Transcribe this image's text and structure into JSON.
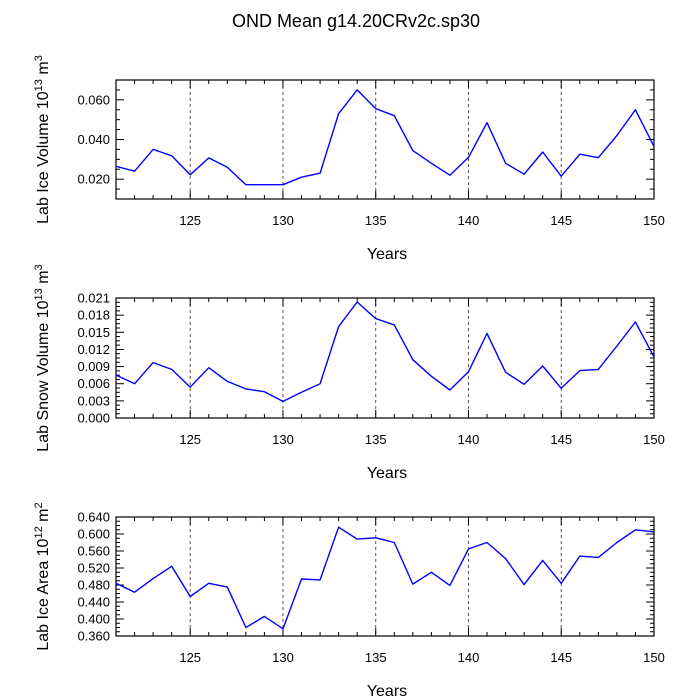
{
  "title": "OND Mean g14.20CRv2c.sp30",
  "colors": {
    "line": "#0000ff",
    "axis": "#000000",
    "grid": "#555555"
  },
  "chart_data": [
    {
      "type": "line",
      "ylabel": "Lab Ice Volume",
      "yunit_base": "10",
      "yunit_exp": "13",
      "yunit_tail": " m",
      "yunit_tail_exp": "3",
      "xlabel": "Years",
      "xlim": [
        121,
        150
      ],
      "ylim": [
        0.01,
        0.07
      ],
      "x_ticks": [
        "125",
        "130",
        "135",
        "140",
        "145",
        "150"
      ],
      "y_ticks": [
        "0.020",
        "0.040",
        "0.060"
      ],
      "grid": "vertical dashed at labeled x ticks",
      "x": [
        121,
        122,
        123,
        124,
        125,
        126,
        127,
        128,
        129,
        130,
        131,
        132,
        133,
        134,
        135,
        136,
        137,
        138,
        139,
        140,
        141,
        142,
        143,
        144,
        145,
        146,
        147,
        148,
        149,
        150
      ],
      "values": [
        0.0265,
        0.024,
        0.035,
        0.0318,
        0.0222,
        0.0307,
        0.026,
        0.0172,
        0.0172,
        0.0172,
        0.021,
        0.023,
        0.053,
        0.065,
        0.0556,
        0.052,
        0.0344,
        0.028,
        0.022,
        0.031,
        0.0485,
        0.028,
        0.0225,
        0.0337,
        0.0215,
        0.0326,
        0.0308,
        0.042,
        0.055,
        0.0365
      ]
    },
    {
      "type": "line",
      "ylabel": "Lab Snow Volume",
      "yunit_base": "10",
      "yunit_exp": "13",
      "yunit_tail": " m",
      "yunit_tail_exp": "3",
      "xlabel": "Years",
      "xlim": [
        121,
        150
      ],
      "ylim": [
        0.0,
        0.021
      ],
      "x_ticks": [
        "125",
        "130",
        "135",
        "140",
        "145",
        "150"
      ],
      "y_ticks": [
        "0.000",
        "0.003",
        "0.006",
        "0.009",
        "0.012",
        "0.015",
        "0.018",
        "0.021"
      ],
      "grid": "vertical dashed at labeled x ticks",
      "x": [
        121,
        122,
        123,
        124,
        125,
        126,
        127,
        128,
        129,
        130,
        131,
        132,
        133,
        134,
        135,
        136,
        137,
        138,
        139,
        140,
        141,
        142,
        143,
        144,
        145,
        146,
        147,
        148,
        149,
        150
      ],
      "values": [
        0.0075,
        0.006,
        0.0097,
        0.0085,
        0.0054,
        0.0088,
        0.0064,
        0.0051,
        0.0046,
        0.0029,
        0.0045,
        0.006,
        0.016,
        0.0203,
        0.0174,
        0.0163,
        0.0102,
        0.0073,
        0.0049,
        0.0081,
        0.0148,
        0.008,
        0.0059,
        0.0091,
        0.0052,
        0.0083,
        0.0085,
        0.0126,
        0.0168,
        0.0107
      ]
    },
    {
      "type": "line",
      "ylabel": "Lab Ice Area",
      "yunit_base": "10",
      "yunit_exp": "12",
      "yunit_tail": " m",
      "yunit_tail_exp": "2",
      "xlabel": "Years",
      "xlim": [
        121,
        150
      ],
      "ylim": [
        0.36,
        0.64
      ],
      "x_ticks": [
        "125",
        "130",
        "135",
        "140",
        "145",
        "150"
      ],
      "y_ticks": [
        "0.360",
        "0.400",
        "0.440",
        "0.480",
        "0.520",
        "0.560",
        "0.600",
        "0.640"
      ],
      "grid": "vertical dashed at labeled x ticks",
      "x": [
        121,
        122,
        123,
        124,
        125,
        126,
        127,
        128,
        129,
        130,
        131,
        132,
        133,
        134,
        135,
        136,
        137,
        138,
        139,
        140,
        141,
        142,
        143,
        144,
        145,
        146,
        147,
        148,
        149,
        150
      ],
      "values": [
        0.484,
        0.463,
        0.495,
        0.524,
        0.453,
        0.484,
        0.475,
        0.38,
        0.406,
        0.377,
        0.494,
        0.492,
        0.616,
        0.588,
        0.591,
        0.58,
        0.482,
        0.51,
        0.479,
        0.565,
        0.58,
        0.542,
        0.481,
        0.538,
        0.484,
        0.548,
        0.545,
        0.58,
        0.61,
        0.605
      ]
    }
  ]
}
